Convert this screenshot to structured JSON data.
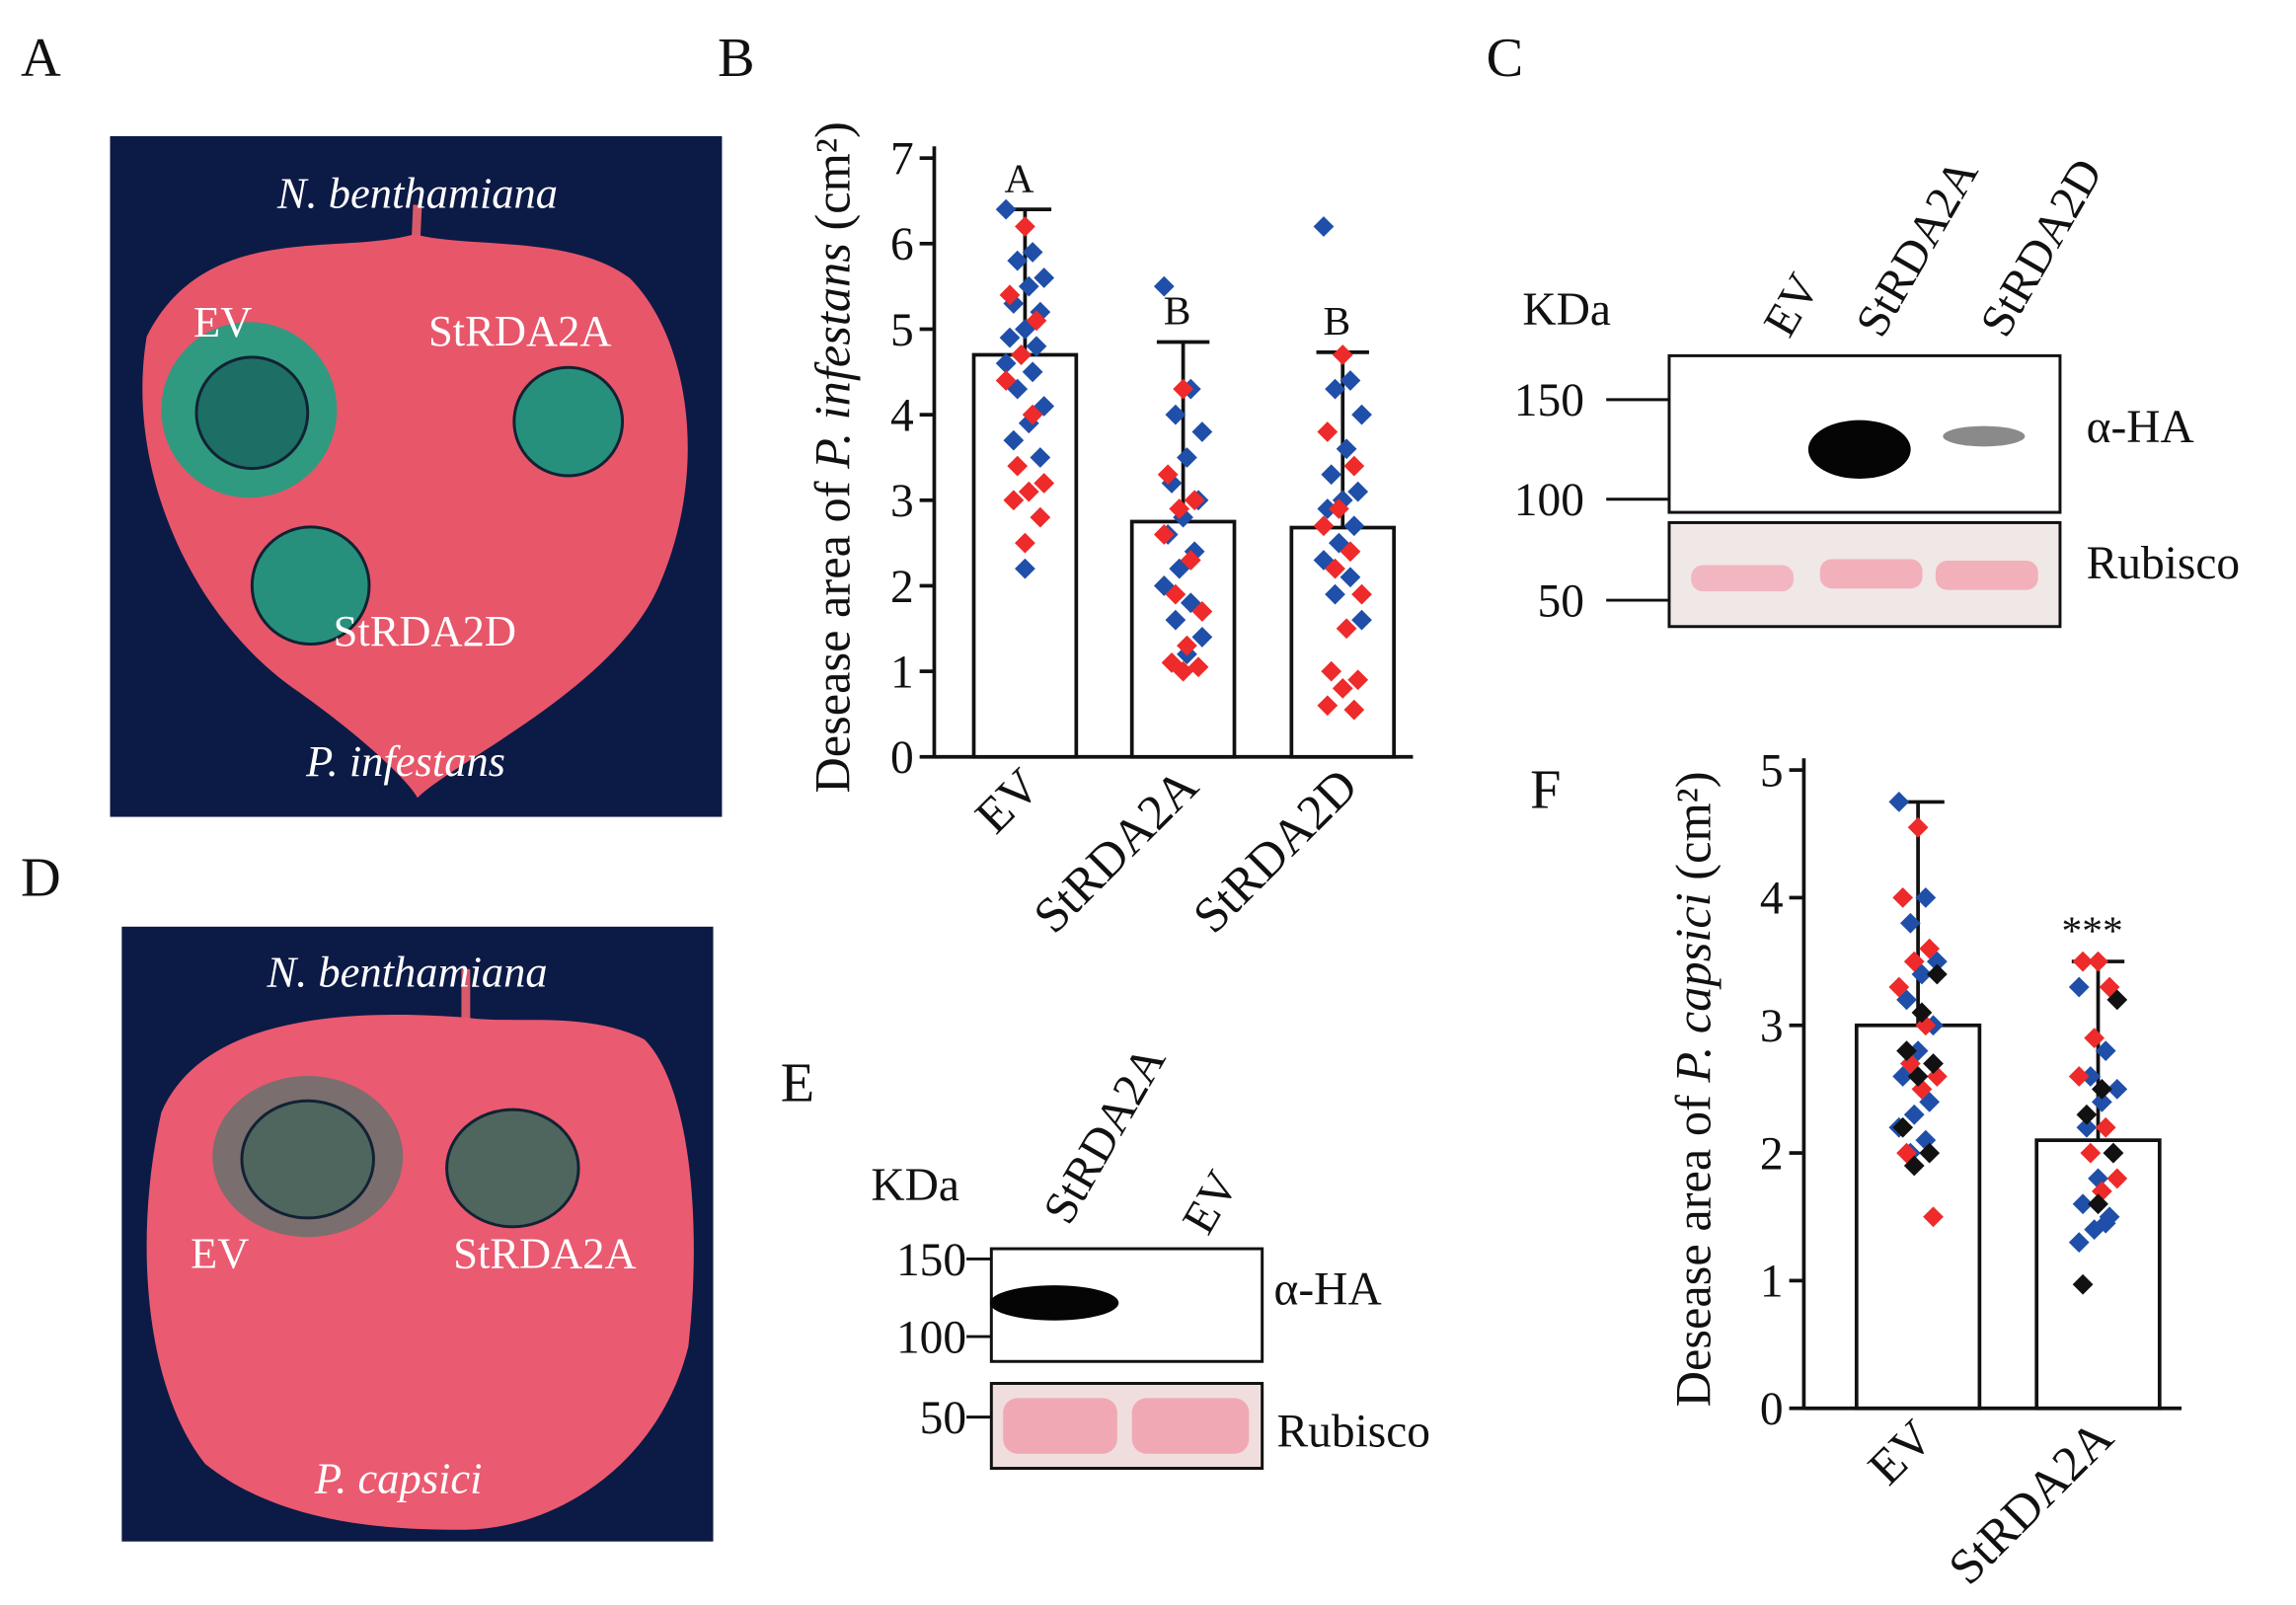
{
  "panel_labels": [
    "A",
    "B",
    "C",
    "D",
    "E",
    "F"
  ],
  "leaf_a": {
    "host": "N. benthamiana",
    "labels": [
      "EV",
      "StRDA2A",
      "StRDA2D"
    ],
    "pathogen": "P. infestans"
  },
  "leaf_d": {
    "host": "N. benthamiana",
    "labels": [
      "EV",
      "StRDA2A"
    ],
    "pathogen": "P. capsici"
  },
  "blot_c": {
    "unit": "KDa",
    "lanes": [
      "EV",
      "StRDA2A",
      "StRDA2D"
    ],
    "markers": [
      "150",
      "100",
      "50"
    ],
    "rows": [
      "α-HA",
      "Rubisco"
    ]
  },
  "blot_e": {
    "unit": "KDa",
    "lanes": [
      "StRDA2A",
      "EV"
    ],
    "markers": [
      "150",
      "100",
      "50"
    ],
    "rows": [
      "α-HA",
      "Rubisco"
    ]
  },
  "chart_data": [
    {
      "type": "bar",
      "y_label": [
        "Desease area of ",
        "P. infestans",
        " (cm²)"
      ],
      "categories": [
        "EV",
        "StRDA2A",
        "StRDA2D"
      ],
      "values": [
        4.7,
        2.75,
        2.68
      ],
      "errors": [
        1.7,
        2.1,
        2.05
      ],
      "annotations": [
        "A",
        "B",
        "B"
      ],
      "ylim": [
        0,
        7
      ],
      "yticks": [
        0,
        1,
        2,
        3,
        4,
        5,
        6,
        7
      ],
      "color": "#ffffff",
      "points": [
        {
          "color": "#1f4fa8",
          "values": [
            [
              6.4,
              5.9,
              5.8,
              5.6,
              5.5,
              5.3,
              5.2,
              5.0,
              4.9,
              4.8,
              4.7,
              4.6,
              4.5,
              4.3,
              4.1,
              3.9,
              3.7,
              3.5,
              2.2
            ],
            [
              5.5,
              4.3,
              4.0,
              3.8,
              3.5,
              3.2,
              3.0,
              2.8,
              2.6,
              2.4,
              2.2,
              2.0,
              1.8,
              1.6,
              1.4,
              1.2
            ],
            [
              6.2,
              4.4,
              4.3,
              4.0,
              3.6,
              3.3,
              3.1,
              3.0,
              2.9,
              2.7,
              2.5,
              2.3,
              2.1,
              1.9,
              1.6
            ]
          ]
        },
        {
          "color": "#ee2a2a",
          "values": [
            [
              6.2,
              5.4,
              5.1,
              4.7,
              4.4,
              4.0,
              3.4,
              3.2,
              3.1,
              3.0,
              2.8,
              2.5
            ],
            [
              4.3,
              3.3,
              3.0,
              2.9,
              2.6,
              2.3,
              1.9,
              1.7,
              1.3,
              1.1,
              1.05,
              1.0
            ],
            [
              4.7,
              3.8,
              3.4,
              2.9,
              2.7,
              2.4,
              2.2,
              1.9,
              1.5,
              1.0,
              0.9,
              0.8,
              0.6,
              0.55
            ]
          ]
        }
      ]
    },
    {
      "type": "bar",
      "y_label": [
        "Desease area of ",
        "P. capsici",
        " (cm²)"
      ],
      "categories": [
        "EV",
        "StRDA2A"
      ],
      "values": [
        3.0,
        2.1
      ],
      "errors": [
        1.75,
        1.4
      ],
      "annotations": [
        null,
        "***"
      ],
      "ylim": [
        0,
        5
      ],
      "yticks": [
        0,
        1,
        2,
        3,
        4,
        5
      ],
      "color": "#ffffff",
      "points": [
        {
          "color": "#1f4fa8",
          "values": [
            [
              4.75,
              4.0,
              3.8,
              3.5,
              3.4,
              3.2,
              3.0,
              2.8,
              2.6,
              2.4,
              2.3,
              2.2,
              2.1,
              2.0
            ],
            [
              3.3,
              2.8,
              2.6,
              2.5,
              2.4,
              2.2,
              2.0,
              1.8,
              1.6,
              1.5,
              1.4,
              1.3,
              1.45
            ]
          ]
        },
        {
          "color": "#ee2a2a",
          "values": [
            [
              4.55,
              4.0,
              3.6,
              3.5,
              3.3,
              3.0,
              2.7,
              2.6,
              2.5,
              2.0,
              1.5
            ],
            [
              3.5,
              3.5,
              3.3,
              2.9,
              2.6,
              2.2,
              2.0,
              1.8,
              1.7
            ]
          ]
        },
        {
          "color": "#111111",
          "values": [
            [
              3.4,
              3.1,
              2.8,
              2.7,
              2.6,
              2.2,
              2.0,
              1.9
            ],
            [
              3.2,
              2.5,
              2.3,
              2.0,
              1.6,
              0.97
            ]
          ]
        }
      ]
    }
  ]
}
